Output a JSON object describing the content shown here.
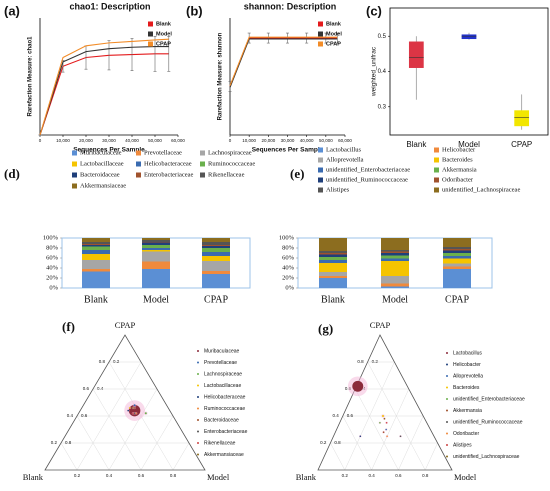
{
  "chart_data": [
    {
      "type": "line",
      "label": "(a)",
      "title": "chao1: Description",
      "xlabel": "Sequences Per Sample",
      "ylabel": "Rarefaction Measure: chao1",
      "x": [
        0,
        10000,
        20000,
        30000,
        40000,
        50000,
        56000
      ],
      "xlim": [
        0,
        60000
      ],
      "xticks": [
        0,
        {
          "value": 10000,
          "label": "10,000"
        },
        {
          "value": 20000,
          "label": "20,000"
        },
        {
          "value": 30000,
          "label": "30,000"
        },
        {
          "value": 40000,
          "label": "40,000"
        },
        {
          "value": 50000,
          "label": "50,000"
        },
        {
          "value": 60000,
          "label": "60,000"
        }
      ],
      "ylim": [
        0,
        800
      ],
      "series": [
        {
          "name": "Blank",
          "color": "#e41a1c",
          "values": [
            0,
            470,
            530,
            545,
            550,
            555,
            555
          ],
          "errors": [
            0,
            40,
            80,
            100,
            110,
            120,
            120
          ]
        },
        {
          "name": "Model",
          "color": "#333333",
          "values": [
            0,
            500,
            570,
            590,
            600,
            605,
            605
          ]
        },
        {
          "name": "CPAP",
          "color": "#f28c28",
          "values": [
            0,
            530,
            610,
            630,
            640,
            650,
            655
          ]
        }
      ]
    },
    {
      "type": "line",
      "label": "(b)",
      "title": "shannon: Description",
      "xlabel": "Sequences Per Sample",
      "ylabel": "Rarefaction Measure: shannon",
      "x": [
        0,
        10000,
        20000,
        30000,
        40000,
        50000,
        56000
      ],
      "xlim": [
        0,
        60000
      ],
      "xticks": [
        0,
        {
          "value": 10000,
          "label": "10,000"
        },
        {
          "value": 20000,
          "label": "20,000"
        },
        {
          "value": 30000,
          "label": "30,000"
        },
        {
          "value": 40000,
          "label": "40,000"
        },
        {
          "value": 50000,
          "label": "50,000"
        },
        {
          "value": 60000,
          "label": "60,000"
        }
      ],
      "ylim": [
        0,
        7
      ],
      "series": [
        {
          "name": "Blank",
          "color": "#e41a1c",
          "values": [
            2.9,
            5.8,
            5.8,
            5.8,
            5.8,
            5.8,
            5.8
          ],
          "errors": [
            0.3,
            0.3,
            0.3,
            0.3,
            0.3,
            0.3,
            0.3
          ]
        },
        {
          "name": "Model",
          "color": "#333333",
          "values": [
            2.85,
            5.75,
            5.75,
            5.75,
            5.75,
            5.75,
            5.75
          ]
        },
        {
          "name": "CPAP",
          "color": "#f28c28",
          "values": [
            2.95,
            5.85,
            5.85,
            5.85,
            5.85,
            5.85,
            5.85
          ]
        }
      ]
    },
    {
      "type": "box",
      "label": "(c)",
      "ylabel": "weighted_unifrac",
      "categories": [
        "Blank",
        "Model",
        "CPAP"
      ],
      "colors": [
        "#dc3545",
        "#2233cc",
        "#f2e600"
      ],
      "min": [
        0.32,
        0.49,
        0.235
      ],
      "q1": [
        0.41,
        0.492,
        0.245
      ],
      "median": [
        0.44,
        0.5,
        0.27
      ],
      "q3": [
        0.485,
        0.505,
        0.29
      ],
      "max": [
        0.5,
        0.51,
        0.335
      ],
      "ylim": [
        0.22,
        0.58
      ],
      "yticks": [
        0.3,
        0.4,
        0.5
      ]
    },
    {
      "type": "stacked_bar",
      "label": "(d)",
      "categories": [
        "Blank",
        "Model",
        "CPAP"
      ],
      "ylim": [
        0,
        100
      ],
      "yticks": [
        {
          "value": 0,
          "label": "0%"
        },
        {
          "value": 20,
          "label": "20%"
        },
        {
          "value": 40,
          "label": "40%"
        },
        {
          "value": 60,
          "label": "60%"
        },
        {
          "value": 80,
          "label": "80%"
        },
        {
          "value": 100,
          "label": "100%"
        }
      ],
      "series": [
        {
          "name": "Muribaculaceae",
          "color": "#5b8fd4",
          "values": [
            33,
            38,
            28
          ]
        },
        {
          "name": "Prevotellaceae",
          "color": "#f08a3c",
          "values": [
            5,
            15,
            6
          ]
        },
        {
          "name": "Lachnospiraceae",
          "color": "#a6a6a6",
          "values": [
            18,
            20,
            20
          ]
        },
        {
          "name": "Lactobacillaceae",
          "color": "#f5c400",
          "values": [
            12,
            3,
            10
          ]
        },
        {
          "name": "Helicobacteraceae",
          "color": "#3a6bb0",
          "values": [
            8,
            4,
            8
          ]
        },
        {
          "name": "Ruminococcaceae",
          "color": "#6ab04c",
          "values": [
            7,
            6,
            8
          ]
        },
        {
          "name": "Bacteroidaceae",
          "color": "#1f3f7a",
          "values": [
            3,
            5,
            4
          ]
        },
        {
          "name": "Enterobacteriaceae",
          "color": "#a0522d",
          "values": [
            2,
            1,
            2
          ]
        },
        {
          "name": "Rikenellaceae",
          "color": "#555555",
          "values": [
            4,
            4,
            6
          ]
        },
        {
          "name": "Akkermansiaceae",
          "color": "#8c6d1f",
          "values": [
            8,
            4,
            8
          ]
        }
      ]
    },
    {
      "type": "stacked_bar",
      "label": "(e)",
      "categories": [
        "Blank",
        "Model",
        "CPAP"
      ],
      "ylim": [
        0,
        100
      ],
      "yticks": [
        {
          "value": 0,
          "label": "0%"
        },
        {
          "value": 20,
          "label": "20%"
        },
        {
          "value": 40,
          "label": "40%"
        },
        {
          "value": 60,
          "label": "60%"
        },
        {
          "value": 80,
          "label": "80%"
        },
        {
          "value": 100,
          "label": "100%"
        }
      ],
      "series": [
        {
          "name": "Lactobacillus",
          "color": "#5b8fd4",
          "values": [
            20,
            3,
            38
          ]
        },
        {
          "name": "Helicobacter",
          "color": "#f08a3c",
          "values": [
            4,
            6,
            5
          ]
        },
        {
          "name": "Alloprevotella",
          "color": "#a6a6a6",
          "values": [
            8,
            15,
            6
          ]
        },
        {
          "name": "Bacteroides",
          "color": "#f5c400",
          "values": [
            18,
            30,
            10
          ]
        },
        {
          "name": "unidentified_Enterobacteriaceae",
          "color": "#3a6bb0",
          "values": [
            6,
            5,
            5
          ]
        },
        {
          "name": "Akkermansia",
          "color": "#6ab04c",
          "values": [
            6,
            6,
            6
          ]
        },
        {
          "name": "unidentified_Ruminococcaceae",
          "color": "#1f3f7a",
          "values": [
            5,
            5,
            5
          ]
        },
        {
          "name": "Odoribacter",
          "color": "#a0522d",
          "values": [
            3,
            3,
            3
          ]
        },
        {
          "name": "Alistipes",
          "color": "#555555",
          "values": [
            4,
            3,
            4
          ]
        },
        {
          "name": "unidentified_Lachnospiraceae",
          "color": "#8c6d1f",
          "values": [
            26,
            24,
            18
          ]
        }
      ]
    },
    {
      "type": "ternary",
      "label": "(f)",
      "vertices": [
        "Blank",
        "Model",
        "CPAP"
      ],
      "ticks": [
        0.2,
        0.4,
        0.6,
        0.8
      ],
      "series": [
        {
          "name": "Muribaculaceae",
          "color": "#8b2a3a",
          "values": [
            0.22,
            0.34,
            0.44
          ],
          "size": 33
        },
        {
          "name": "Prevotellaceae",
          "color": "#3a6bb0",
          "values": [
            0.2,
            0.32,
            0.48
          ],
          "size": 1
        },
        {
          "name": "Lachnospiraceae",
          "color": "#6ab04c",
          "values": [
            0.16,
            0.42,
            0.42
          ],
          "size": 1
        },
        {
          "name": "Lactobacillaceae",
          "color": "#f5c400",
          "values": [
            0.24,
            0.3,
            0.46
          ],
          "size": 0.5
        },
        {
          "name": "Helicobacteraceae",
          "color": "#1f3f7a",
          "values": [
            0.26,
            0.3,
            0.44
          ],
          "size": 0.5
        },
        {
          "name": "Ruminococcaceae",
          "color": "#f08a3c",
          "values": [
            0.22,
            0.36,
            0.42
          ],
          "size": 0.5
        },
        {
          "name": "Bacteroidaceae",
          "color": "#a0522d",
          "values": [
            0.21,
            0.33,
            0.46
          ],
          "size": 0.5
        },
        {
          "name": "Enterobacteriaceae",
          "color": "#555555",
          "values": [
            0.23,
            0.35,
            0.42
          ],
          "size": 0.5
        },
        {
          "name": "Rikenellaceae",
          "color": "#cc4444",
          "values": [
            0.24,
            0.34,
            0.42
          ],
          "size": 0.5
        },
        {
          "name": "Akkermansiaceae",
          "color": "#8c6d1f",
          "values": [
            0.22,
            0.32,
            0.46
          ],
          "size": 0.5
        }
      ]
    },
    {
      "type": "ternary",
      "label": "(g)",
      "vertices": [
        "Blank",
        "Model",
        "CPAP"
      ],
      "ticks": [
        0.2,
        0.4,
        0.6,
        0.8
      ],
      "series": [
        {
          "name": "Lactobacillus",
          "color": "#8b2a3a",
          "values": [
            0.37,
            0.01,
            0.62
          ],
          "size": 30
        },
        {
          "name": "Helicobacter",
          "color": "#1f3f7a",
          "values": [
            0.55,
            0.2,
            0.25
          ],
          "size": 0.5
        },
        {
          "name": "Alloprevotella",
          "color": "#3a6bb0",
          "values": [
            0.33,
            0.37,
            0.3
          ],
          "size": 0.5
        },
        {
          "name": "Bacteroides",
          "color": "#f5c400",
          "values": [
            0.3,
            0.3,
            0.4
          ],
          "size": 1
        },
        {
          "name": "unidentified_Enterobacteriaceae",
          "color": "#6ab04c",
          "values": [
            0.35,
            0.3,
            0.35
          ],
          "size": 0.5
        },
        {
          "name": "Akkermansia",
          "color": "#a0522d",
          "values": [
            0.36,
            0.36,
            0.28
          ],
          "size": 0.5
        },
        {
          "name": "unidentified_Ruminococcaceae",
          "color": "#555555",
          "values": [
            0.25,
            0.5,
            0.25
          ],
          "size": 0.5
        },
        {
          "name": "Odoribacter",
          "color": "#f08a3c",
          "values": [
            0.35,
            0.4,
            0.25
          ],
          "size": 0.5
        },
        {
          "name": "Alistipes",
          "color": "#cc4444",
          "values": [
            0.3,
            0.35,
            0.35
          ],
          "size": 0.5
        },
        {
          "name": "unidentified_Lachnospiraceae",
          "color": "#8c6d1f",
          "values": [
            0.3,
            0.32,
            0.38
          ],
          "size": 0.5
        }
      ]
    }
  ]
}
